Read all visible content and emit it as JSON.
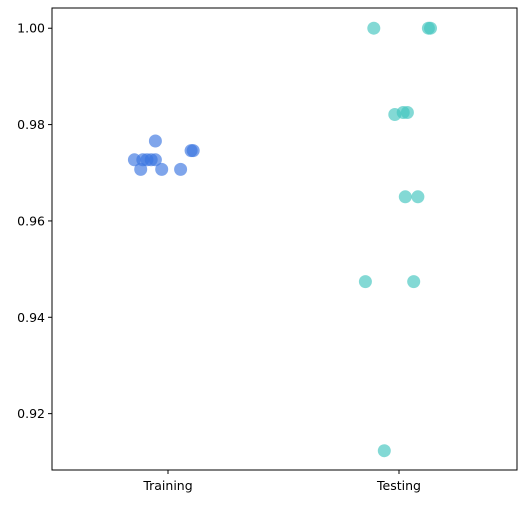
{
  "chart_data": {
    "type": "scatter",
    "title": "",
    "xlabel": "",
    "ylabel": "",
    "categories": [
      "Training",
      "Testing"
    ],
    "ylim": [
      0.9083,
      1.0042
    ],
    "yticks": [
      0.92,
      0.94,
      0.96,
      0.98,
      1.0
    ],
    "ytick_labels": [
      "0.92",
      "0.94",
      "0.96",
      "0.98",
      "1.00"
    ],
    "grid": false,
    "series": [
      {
        "category": "Training",
        "color": "#3b75e0",
        "points": [
          {
            "x": -0.08,
            "y": 0.9727
          },
          {
            "x": -0.06,
            "y": 0.9727
          },
          {
            "x": -0.05,
            "y": 0.9727
          },
          {
            "x": -0.03,
            "y": 0.9727
          },
          {
            "x": -0.04,
            "y": 0.9727
          },
          {
            "x": -0.065,
            "y": 0.9707
          },
          {
            "x": -0.03,
            "y": 0.9766
          },
          {
            "x": -0.015,
            "y": 0.9707
          },
          {
            "x": 0.03,
            "y": 0.9707
          },
          {
            "x": 0.06,
            "y": 0.9746
          },
          {
            "x": 0.055,
            "y": 0.9746
          }
        ]
      },
      {
        "category": "Testing",
        "color": "#40c4bf",
        "points": [
          {
            "x": -0.06,
            "y": 1.0
          },
          {
            "x": 0.07,
            "y": 1.0
          },
          {
            "x": 0.075,
            "y": 1.0
          },
          {
            "x": -0.01,
            "y": 0.9821
          },
          {
            "x": 0.01,
            "y": 0.9825
          },
          {
            "x": 0.02,
            "y": 0.9825
          },
          {
            "x": 0.015,
            "y": 0.965
          },
          {
            "x": 0.045,
            "y": 0.965
          },
          {
            "x": -0.08,
            "y": 0.9474
          },
          {
            "x": 0.035,
            "y": 0.9474
          },
          {
            "x": -0.035,
            "y": 0.9123
          }
        ]
      }
    ]
  }
}
